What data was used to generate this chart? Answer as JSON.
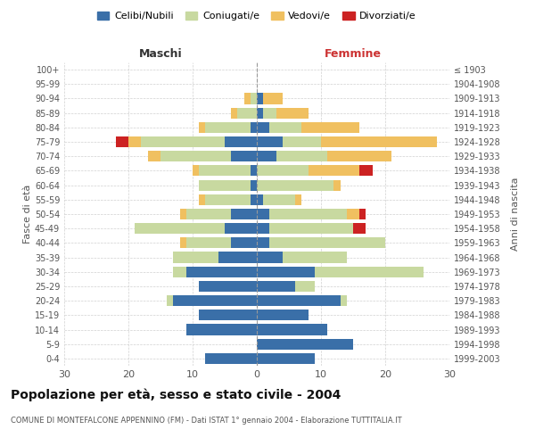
{
  "age_groups": [
    "0-4",
    "5-9",
    "10-14",
    "15-19",
    "20-24",
    "25-29",
    "30-34",
    "35-39",
    "40-44",
    "45-49",
    "50-54",
    "55-59",
    "60-64",
    "65-69",
    "70-74",
    "75-79",
    "80-84",
    "85-89",
    "90-94",
    "95-99",
    "100+"
  ],
  "birth_years": [
    "1999-2003",
    "1994-1998",
    "1989-1993",
    "1984-1988",
    "1979-1983",
    "1974-1978",
    "1969-1973",
    "1964-1968",
    "1959-1963",
    "1954-1958",
    "1949-1953",
    "1944-1948",
    "1939-1943",
    "1934-1938",
    "1929-1933",
    "1924-1928",
    "1919-1923",
    "1914-1918",
    "1909-1913",
    "1904-1908",
    "≤ 1903"
  ],
  "male_celibi": [
    8,
    0,
    11,
    9,
    13,
    9,
    11,
    6,
    4,
    5,
    4,
    1,
    1,
    1,
    4,
    5,
    1,
    0,
    0,
    0,
    0
  ],
  "male_coniugati": [
    0,
    0,
    0,
    0,
    1,
    0,
    2,
    7,
    7,
    14,
    7,
    7,
    8,
    8,
    11,
    13,
    7,
    3,
    1,
    0,
    0
  ],
  "male_vedovi": [
    0,
    0,
    0,
    0,
    0,
    0,
    0,
    0,
    1,
    0,
    1,
    1,
    0,
    1,
    2,
    2,
    1,
    1,
    1,
    0,
    0
  ],
  "male_divorziati": [
    0,
    0,
    0,
    0,
    0,
    0,
    0,
    0,
    0,
    0,
    0,
    0,
    0,
    0,
    0,
    2,
    0,
    0,
    0,
    0,
    0
  ],
  "female_celibi": [
    9,
    15,
    11,
    8,
    13,
    6,
    9,
    4,
    2,
    2,
    2,
    1,
    0,
    0,
    3,
    4,
    2,
    1,
    1,
    0,
    0
  ],
  "female_coniugati": [
    0,
    0,
    0,
    0,
    1,
    3,
    17,
    10,
    18,
    13,
    12,
    5,
    12,
    8,
    8,
    6,
    5,
    2,
    0,
    0,
    0
  ],
  "female_vedovi": [
    0,
    0,
    0,
    0,
    0,
    0,
    0,
    0,
    0,
    0,
    2,
    1,
    1,
    8,
    10,
    18,
    9,
    5,
    3,
    0,
    0
  ],
  "female_divorziati": [
    0,
    0,
    0,
    0,
    0,
    0,
    0,
    0,
    0,
    2,
    1,
    0,
    0,
    2,
    0,
    0,
    0,
    0,
    0,
    0,
    0
  ],
  "color_celibi": "#3a6fa8",
  "color_coniugati": "#c8d9a0",
  "color_vedovi": "#f0c060",
  "color_divorziati": "#cc2222",
  "title": "Popolazione per età, sesso e stato civile - 2004",
  "subtitle": "COMUNE DI MONTEFALCONE APPENNINO (FM) - Dati ISTAT 1° gennaio 2004 - Elaborazione TUTTITALIA.IT",
  "xlabel_left": "Maschi",
  "xlabel_right": "Femmine",
  "ylabel_left": "Fasce di età",
  "ylabel_right": "Anni di nascita",
  "xlim": 30,
  "bg_color": "#ffffff",
  "grid_color": "#cccccc"
}
